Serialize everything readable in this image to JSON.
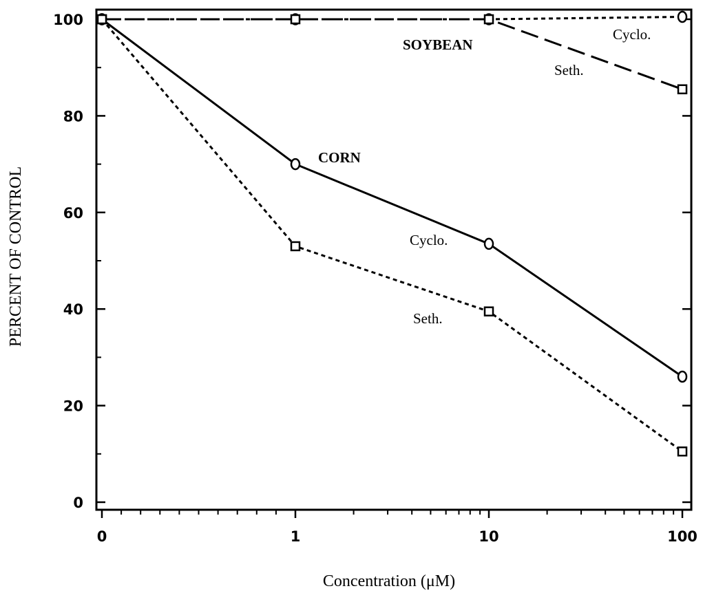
{
  "chart_data": {
    "type": "line",
    "xlabel": "Concentration (μM)",
    "ylabel": "PERCENT OF CONTROL",
    "x_scale": "log",
    "x": [
      0,
      1,
      10,
      100
    ],
    "x_tick_labels": [
      "0",
      "1",
      "10",
      "100"
    ],
    "ylim": [
      0,
      100
    ],
    "y_ticks": [
      0,
      20,
      40,
      60,
      80,
      100
    ],
    "grid": false,
    "series": [
      {
        "group": "CORN",
        "name": "Cyclo.",
        "marker": "circle",
        "line_style": "solid",
        "values": [
          100,
          70,
          53.5,
          26
        ]
      },
      {
        "group": "CORN",
        "name": "Seth.",
        "marker": "square",
        "line_style": "short-dash",
        "values": [
          100,
          53,
          39.5,
          10.5
        ]
      },
      {
        "group": "SOYBEAN",
        "name": "Cyclo.",
        "marker": "circle",
        "line_style": "short-dash",
        "values": [
          100,
          100,
          100,
          100.5
        ]
      },
      {
        "group": "SOYBEAN",
        "name": "Seth.",
        "marker": "square",
        "line_style": "long-dash",
        "values": [
          100,
          100,
          100,
          85.5
        ]
      }
    ],
    "annotations": [
      "SOYBEAN",
      "CORN"
    ]
  }
}
